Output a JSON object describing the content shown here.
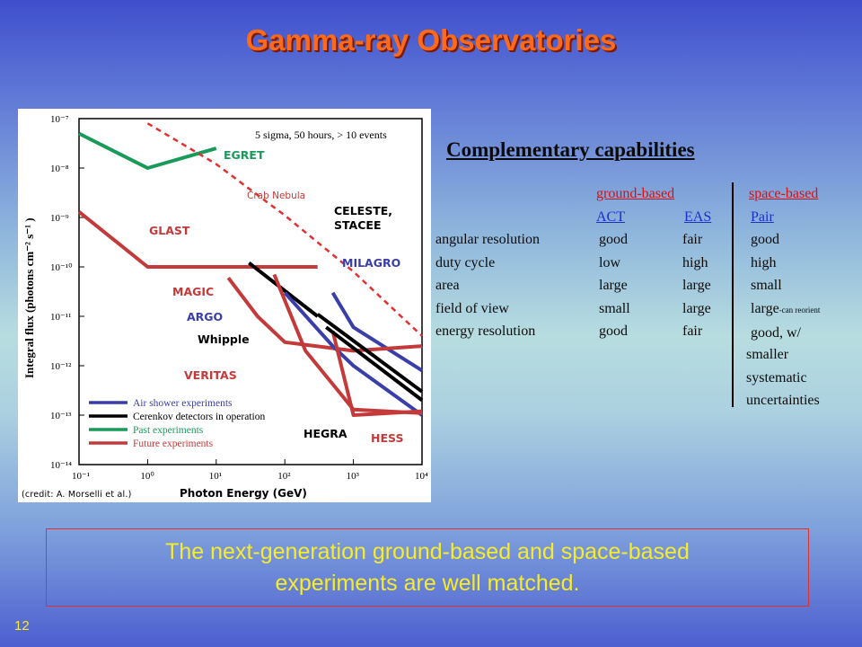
{
  "slide": {
    "title": "Gamma-ray Observatories",
    "number": "12",
    "callout": {
      "line1": "The next-generation ground-based and space-based",
      "line2": "experiments are well matched."
    }
  },
  "figure": {
    "criteria": "5 sigma, 50 hours, > 10 events",
    "credit": "(credit: A. Morselli et al.)",
    "labels": {
      "egret": "EGRET",
      "crab": "Crab  Nebula",
      "celeste": "CELESTE,",
      "stacee": "STACEE",
      "glast": "GLAST",
      "milagro": "MILAGRO",
      "magic": "MAGIC",
      "argo": "ARGO",
      "whipple": "Whipple",
      "veritas": "VERITAS",
      "hegra": "HEGRA",
      "hess": "HESS"
    },
    "legend": [
      {
        "label": "Air shower experiments",
        "color": "#3a3ea8"
      },
      {
        "label": "Cerenkov detectors in operation",
        "color": "#000000"
      },
      {
        "label": "Past experiments",
        "color": "#1a9a5a"
      },
      {
        "label": "Future experiments",
        "color": "#c43a3a"
      }
    ]
  },
  "chart_data": {
    "type": "line",
    "xlabel": "Photon Energy (GeV)",
    "ylabel": "Integral flux (photons cm⁻² s⁻¹ )",
    "x_scale": "log",
    "y_scale": "log",
    "xlim": [
      0.1,
      10000
    ],
    "ylim": [
      1e-14,
      1e-07
    ],
    "x_ticks": [
      "10⁻¹",
      "10⁰",
      "10¹",
      "10²",
      "10³",
      "10⁴"
    ],
    "y_ticks": [
      "10⁻⁷",
      "10⁻⁸",
      "10⁻⁹",
      "10⁻¹⁰",
      "10⁻¹¹",
      "10⁻¹²",
      "10⁻¹³",
      "10⁻¹⁴"
    ],
    "series": [
      {
        "name": "EGRET",
        "color": "#1a9a5a",
        "x": [
          0.1,
          1,
          10
        ],
        "y": [
          5e-08,
          1e-08,
          2.5e-08
        ]
      },
      {
        "name": "Crab  Nebula",
        "color": "#e03030",
        "dashed": true,
        "x": [
          1,
          10,
          100,
          1000,
          10000
        ],
        "y": [
          8e-08,
          1.2e-08,
          1.1e-09,
          8e-11,
          4e-12
        ]
      },
      {
        "name": "GLAST",
        "color": "#c43a3a",
        "x": [
          0.1,
          1,
          10,
          100,
          300
        ],
        "y": [
          1.3e-09,
          1e-10,
          1e-10,
          1e-10,
          1e-10
        ]
      },
      {
        "name": "CELESTE,",
        "color": "#000000",
        "x": [
          30,
          300
        ],
        "y": [
          1.2e-10,
          1e-11
        ]
      },
      {
        "name": "MILAGRO",
        "color": "#3a3ea8",
        "x": [
          500,
          1000,
          10000
        ],
        "y": [
          3e-11,
          6e-12,
          8e-13
        ]
      },
      {
        "name": "MAGIC",
        "color": "#c43a3a",
        "x": [
          15,
          40,
          100,
          1000,
          10000
        ],
        "y": [
          6e-11,
          1e-11,
          3e-12,
          2e-12,
          2.5e-12
        ]
      },
      {
        "name": "ARGO",
        "color": "#3a3ea8",
        "x": [
          100,
          500,
          1000,
          10000
        ],
        "y": [
          3e-11,
          2.5e-12,
          1e-12,
          1e-13
        ]
      },
      {
        "name": "Whipple",
        "color": "#000000",
        "x": [
          300,
          10000
        ],
        "y": [
          1.1e-11,
          3e-13
        ]
      },
      {
        "name": "VERITAS",
        "color": "#c43a3a",
        "x": [
          70,
          200,
          1000,
          10000
        ],
        "y": [
          7e-11,
          2e-12,
          1.3e-13,
          1.1e-13
        ]
      },
      {
        "name": "HEGRA",
        "color": "#c43a3a",
        "x": [
          500,
          1000,
          10000
        ],
        "y": [
          5e-12,
          1e-13,
          1.2e-13
        ]
      },
      {
        "name": "HESS",
        "color": "#000000",
        "x": [
          400,
          10000
        ],
        "y": [
          6e-12,
          2e-13
        ]
      }
    ]
  },
  "table": {
    "heading": "Complementary capabilities",
    "header_red": [
      "ground-based",
      "space-based"
    ],
    "header_blue": [
      "ACT",
      "EAS",
      "Pair"
    ],
    "rows": [
      {
        "label": "angular resolution",
        "act": "good",
        "eas": "fair",
        "pair": "good"
      },
      {
        "label": "duty cycle",
        "act": "low",
        "eas": "high",
        "pair": "high"
      },
      {
        "label": "area",
        "act": "large",
        "eas": "large",
        "pair": "small"
      },
      {
        "label": "field of view",
        "act": "small",
        "eas": "large",
        "pair": "large",
        "pair_note": "-can reorient"
      },
      {
        "label": "energy resolution",
        "act": "good",
        "eas": "fair",
        "pair": "good, w/"
      }
    ],
    "pair_continuation": [
      "smaller",
      "systematic",
      "uncertainties"
    ]
  }
}
